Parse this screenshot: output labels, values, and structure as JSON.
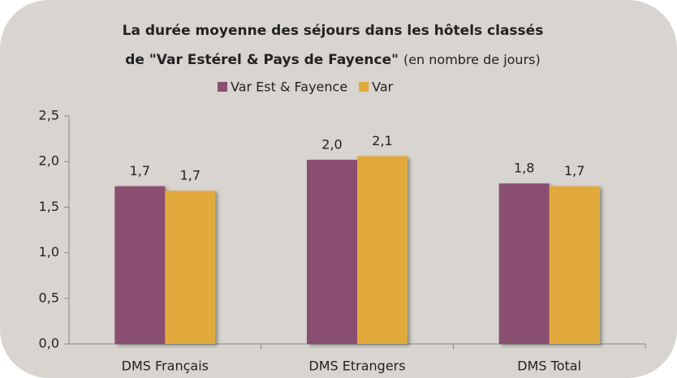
{
  "chart_data": {
    "type": "bar",
    "title": [
      "La durée moyenne des séjours dans les hôtels classés",
      "de \"Var Estérel & Pays de Fayence\""
    ],
    "subtitle": "(en nombre de jours)",
    "categories": [
      "DMS Français",
      "DMS Etrangers",
      "DMS Total"
    ],
    "series": [
      {
        "name": "Var Est & Fayence",
        "color": "#8a4f6f",
        "values": [
          1.73,
          2.02,
          1.76
        ],
        "value_labels": [
          "1,7",
          "2,0",
          "1,8"
        ]
      },
      {
        "name": "Var",
        "color": "#e2aa3c",
        "values": [
          1.68,
          2.06,
          1.73
        ],
        "value_labels": [
          "1,7",
          "2,1",
          "1,7"
        ]
      }
    ],
    "ylim": [
      0,
      2.5
    ],
    "yticks": [
      {
        "value": 0,
        "label": "0,0"
      },
      {
        "value": 0.5,
        "label": "0,5"
      },
      {
        "value": 1,
        "label": "1,0"
      },
      {
        "value": 1.5,
        "label": "1,5"
      },
      {
        "value": 2,
        "label": "2,0"
      },
      {
        "value": 2.5,
        "label": "2,5"
      }
    ],
    "grid": false,
    "legend": "top"
  }
}
